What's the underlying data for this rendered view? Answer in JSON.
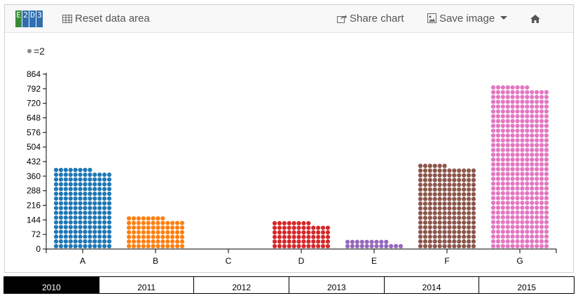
{
  "toolbar": {
    "logo_letters": [
      "E",
      "2",
      "D",
      "3"
    ],
    "reset_label": "Reset data area",
    "share_label": "Share chart",
    "save_label": "Save image"
  },
  "legend": {
    "unit_label": "=2"
  },
  "years": [
    "2010",
    "2011",
    "2012",
    "2013",
    "2014",
    "2015"
  ],
  "active_year": "2010",
  "chart_data": {
    "type": "bar",
    "subtype": "dot-unit (waffle) bar chart",
    "unit_value": 2,
    "categories": [
      "A",
      "B",
      "C",
      "D",
      "E",
      "F",
      "G"
    ],
    "values": [
      400,
      160,
      0,
      136,
      42,
      420,
      808
    ],
    "colors": [
      "#1f77b4",
      "#ff7f0e",
      "#2ca02c",
      "#d62728",
      "#9467bd",
      "#8c564b",
      "#e377c2"
    ],
    "yticks": [
      0,
      72,
      144,
      216,
      288,
      360,
      432,
      504,
      576,
      648,
      720,
      792,
      864
    ],
    "ylim": [
      0,
      864
    ],
    "xlabel": "",
    "ylabel": "",
    "title": "",
    "grid": false
  }
}
